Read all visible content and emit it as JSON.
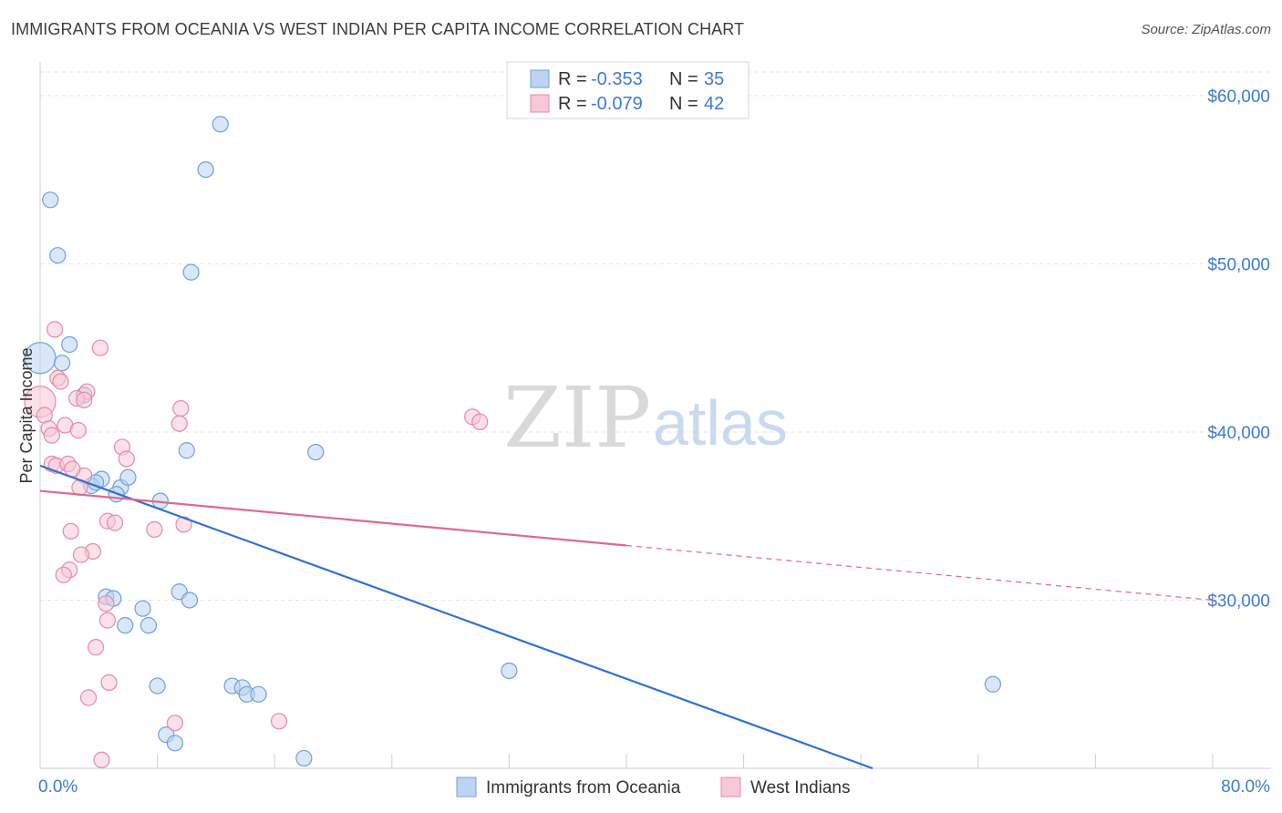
{
  "title": "IMMIGRANTS FROM OCEANIA VS WEST INDIAN PER CAPITA INCOME CORRELATION CHART",
  "source": "Source: ZipAtlas.com",
  "watermark": {
    "zip": "ZIP",
    "atlas": "atlas"
  },
  "colors": {
    "blue_fill": "#bcd4f2",
    "blue_stroke": "#6fa0dd",
    "blue_line": "#2f72d4",
    "pink_fill": "#f8c8d6",
    "pink_stroke": "#e889a8",
    "pink_line": "#e06890",
    "tick": "#3d7bd2",
    "grid": "#e3e3e3"
  },
  "legend": {
    "rows": [
      {
        "r_label": "R =",
        "r_value": "-0.353",
        "n_label": "N =",
        "n_value": "35"
      },
      {
        "r_label": "R =",
        "r_value": "-0.079",
        "n_label": "N =",
        "n_value": "42"
      }
    ]
  },
  "chart_data": {
    "type": "scatter",
    "title": "IMMIGRANTS FROM OCEANIA VS WEST INDIAN PER CAPITA INCOME CORRELATION CHART",
    "xlabel": "",
    "ylabel": "Per Capita Income",
    "xlim": [
      0,
      80
    ],
    "ylim": [
      20000,
      62000
    ],
    "x_tick_labels": [
      "0.0%",
      "80.0%"
    ],
    "y_ticks": [
      30000,
      40000,
      50000,
      60000
    ],
    "y_tick_labels": [
      "$30,000",
      "$40,000",
      "$50,000",
      "$60,000"
    ],
    "series": [
      {
        "name": "Immigrants from Oceania",
        "trend": {
          "x0": 0,
          "y0": 38000,
          "x1": 56.8,
          "y1": 20000,
          "solid_to": 56.8
        },
        "points": [
          {
            "x": 0.0,
            "y": 44400,
            "big": true
          },
          {
            "x": 0.7,
            "y": 53800
          },
          {
            "x": 1.2,
            "y": 50500
          },
          {
            "x": 1.5,
            "y": 44100
          },
          {
            "x": 2.0,
            "y": 45200
          },
          {
            "x": 3.0,
            "y": 42200
          },
          {
            "x": 4.2,
            "y": 37200
          },
          {
            "x": 3.5,
            "y": 36800
          },
          {
            "x": 5.5,
            "y": 36700
          },
          {
            "x": 5.2,
            "y": 36300
          },
          {
            "x": 8.2,
            "y": 35900
          },
          {
            "x": 11.3,
            "y": 55600
          },
          {
            "x": 12.3,
            "y": 58300
          },
          {
            "x": 10.3,
            "y": 49500
          },
          {
            "x": 10.0,
            "y": 38900
          },
          {
            "x": 18.8,
            "y": 38800
          },
          {
            "x": 4.5,
            "y": 30200
          },
          {
            "x": 5.0,
            "y": 30100
          },
          {
            "x": 5.8,
            "y": 28500
          },
          {
            "x": 7.0,
            "y": 29500
          },
          {
            "x": 7.4,
            "y": 28500
          },
          {
            "x": 9.5,
            "y": 30500
          },
          {
            "x": 10.2,
            "y": 30000
          },
          {
            "x": 8.0,
            "y": 24900
          },
          {
            "x": 13.1,
            "y": 24900
          },
          {
            "x": 13.8,
            "y": 24800
          },
          {
            "x": 14.1,
            "y": 24400
          },
          {
            "x": 14.9,
            "y": 24400
          },
          {
            "x": 8.6,
            "y": 22000
          },
          {
            "x": 9.2,
            "y": 21500
          },
          {
            "x": 18.0,
            "y": 20600
          },
          {
            "x": 32.0,
            "y": 25800
          },
          {
            "x": 65.0,
            "y": 25000
          },
          {
            "x": 3.8,
            "y": 37000
          },
          {
            "x": 6.0,
            "y": 37300
          }
        ]
      },
      {
        "name": "West Indians",
        "trend": {
          "x0": 0,
          "y0": 36500,
          "x1": 80,
          "y1": 30000,
          "solid_to": 40
        },
        "points": [
          {
            "x": 0.0,
            "y": 41800,
            "big": true
          },
          {
            "x": 1.0,
            "y": 46100
          },
          {
            "x": 4.1,
            "y": 45000
          },
          {
            "x": 1.2,
            "y": 43200
          },
          {
            "x": 1.4,
            "y": 43000
          },
          {
            "x": 3.2,
            "y": 42400
          },
          {
            "x": 2.5,
            "y": 42000
          },
          {
            "x": 3.0,
            "y": 41900
          },
          {
            "x": 0.3,
            "y": 41000
          },
          {
            "x": 0.6,
            "y": 40200
          },
          {
            "x": 0.8,
            "y": 39800
          },
          {
            "x": 1.7,
            "y": 40400
          },
          {
            "x": 2.6,
            "y": 40100
          },
          {
            "x": 5.6,
            "y": 39100
          },
          {
            "x": 5.9,
            "y": 38400
          },
          {
            "x": 0.8,
            "y": 38100
          },
          {
            "x": 1.1,
            "y": 38000
          },
          {
            "x": 1.9,
            "y": 38100
          },
          {
            "x": 3.0,
            "y": 37400
          },
          {
            "x": 2.2,
            "y": 37800
          },
          {
            "x": 2.7,
            "y": 36700
          },
          {
            "x": 9.6,
            "y": 41400
          },
          {
            "x": 9.5,
            "y": 40500
          },
          {
            "x": 29.5,
            "y": 40900
          },
          {
            "x": 30.0,
            "y": 40600
          },
          {
            "x": 4.6,
            "y": 34700
          },
          {
            "x": 5.1,
            "y": 34600
          },
          {
            "x": 7.8,
            "y": 34200
          },
          {
            "x": 9.8,
            "y": 34500
          },
          {
            "x": 2.1,
            "y": 34100
          },
          {
            "x": 3.6,
            "y": 32900
          },
          {
            "x": 2.8,
            "y": 32700
          },
          {
            "x": 2.0,
            "y": 31800
          },
          {
            "x": 1.6,
            "y": 31500
          },
          {
            "x": 4.5,
            "y": 29800
          },
          {
            "x": 4.6,
            "y": 28800
          },
          {
            "x": 3.8,
            "y": 27200
          },
          {
            "x": 4.7,
            "y": 25100
          },
          {
            "x": 3.3,
            "y": 24200
          },
          {
            "x": 9.2,
            "y": 22700
          },
          {
            "x": 16.3,
            "y": 22800
          },
          {
            "x": 4.2,
            "y": 20500
          }
        ]
      }
    ]
  }
}
